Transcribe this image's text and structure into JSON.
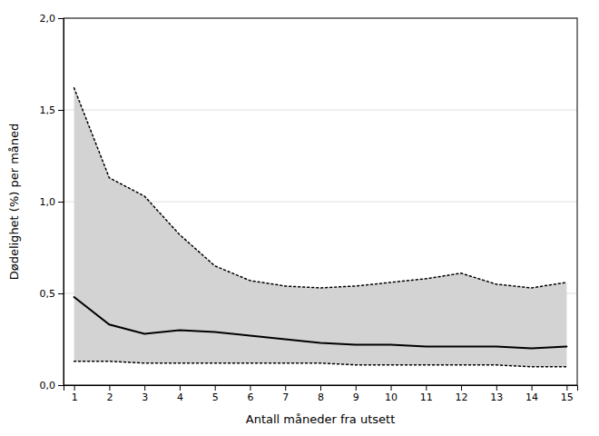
{
  "chart_data": {
    "type": "line",
    "x": [
      1,
      2,
      3,
      4,
      5,
      6,
      7,
      8,
      9,
      10,
      11,
      12,
      13,
      14,
      15
    ],
    "series": [
      {
        "type": "area",
        "color": "#d3d3d3",
        "values": [
          1.62,
          1.13,
          1.03,
          0.82,
          0.65,
          0.57,
          0.54,
          0.53,
          0.54,
          0.56,
          0.58,
          0.61,
          0.55,
          0.53,
          0.56
        ],
        "lower": [
          0.13,
          0.13,
          0.12,
          0.12,
          0.12,
          0.12,
          0.12,
          0.12,
          0.11,
          0.11,
          0.11,
          0.11,
          0.11,
          0.1,
          0.1
        ]
      },
      {
        "type": "line",
        "color": "#000000",
        "line_style": "dotted",
        "values": [
          1.62,
          1.13,
          1.03,
          0.82,
          0.65,
          0.57,
          0.54,
          0.53,
          0.54,
          0.56,
          0.58,
          0.61,
          0.55,
          0.53,
          0.56
        ]
      },
      {
        "type": "line",
        "color": "#000000",
        "line_style": "dotted",
        "values": [
          0.13,
          0.13,
          0.12,
          0.12,
          0.12,
          0.12,
          0.12,
          0.12,
          0.11,
          0.11,
          0.11,
          0.11,
          0.11,
          0.1,
          0.1
        ]
      },
      {
        "type": "line",
        "color": "#000000",
        "line_style": "solid",
        "values": [
          0.48,
          0.33,
          0.28,
          0.3,
          0.29,
          0.27,
          0.25,
          0.23,
          0.22,
          0.22,
          0.21,
          0.21,
          0.21,
          0.2,
          0.21
        ]
      }
    ],
    "x_label": "Antall måneder fra utsett",
    "y_label": "Dødelighet (%) per måned",
    "xlim": [
      0.7,
      15.3
    ],
    "xticks": [
      1,
      2,
      3,
      4,
      5,
      6,
      7,
      8,
      9,
      10,
      11,
      12,
      13,
      14,
      15
    ],
    "ylim": [
      0.0,
      2.0
    ],
    "yticks": [
      {
        "value": 0.0,
        "label": "0,0"
      },
      {
        "value": 0.5,
        "label": "0,5"
      },
      {
        "value": 1.0,
        "label": "1,0"
      },
      {
        "value": 1.5,
        "label": "1,5"
      },
      {
        "value": 2.0,
        "label": "2,0"
      }
    ],
    "grid": true
  }
}
